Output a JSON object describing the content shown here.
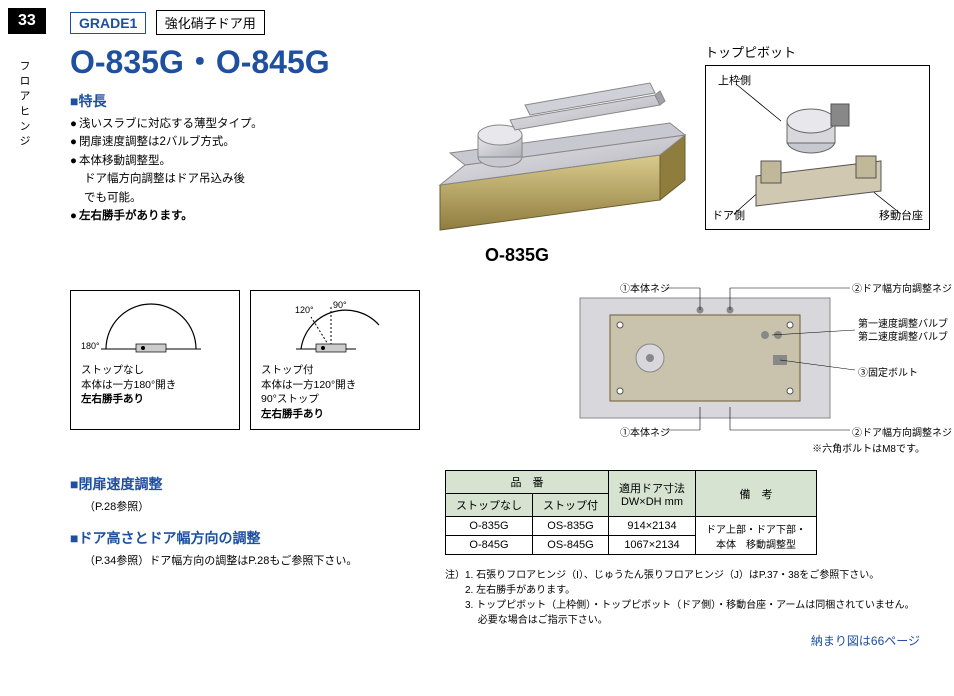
{
  "page_number": "33",
  "side_label": "フロアヒンジ",
  "grade": "GRADE1",
  "usage": "強化硝子ドア用",
  "product_code": "O-835G・O-845G",
  "features_heading": "■特長",
  "features": [
    {
      "text": "浅いスラブに対応する薄型タイプ。",
      "bullet": true
    },
    {
      "text": "閉扉速度調整は2バルブ方式。",
      "bullet": true
    },
    {
      "text": "本体移動調整型。",
      "bullet": true
    },
    {
      "text": "ドア幅方向調整はドア吊込み後",
      "indent": true
    },
    {
      "text": "でも可能。",
      "indent": true
    },
    {
      "text": "左右勝手があります。",
      "bullet": true,
      "bold": true
    }
  ],
  "main_product_label": "O-835G",
  "pivot": {
    "title": "トップピボット",
    "annotations": {
      "top": "上枠側",
      "left": "ドア側",
      "right": "移動台座"
    }
  },
  "diagrams": [
    {
      "angle_main": "180°",
      "lines": [
        "ストップなし",
        "本体は一方180°開き"
      ],
      "bold_line": "左右勝手あり"
    },
    {
      "angle_top": "90°",
      "angle_main": "120°",
      "lines": [
        "ストップ付",
        "本体は一方120°開き",
        "90°ストップ"
      ],
      "bold_line": "左右勝手あり"
    }
  ],
  "component_annotations": {
    "top_left": "①本体ネジ",
    "top_right": "②ドア幅方向調整ネジ",
    "valve1": "第一速度調整バルブ",
    "valve2": "第二速度調整バルブ",
    "bolt": "③固定ボルト",
    "bottom_left": "①本体ネジ",
    "bottom_right": "②ドア幅方向調整ネジ",
    "note": "※六角ボルトはM8です。"
  },
  "adjustment_sections": [
    {
      "heading": "■閉扉速度調整",
      "ref": "（P.28参照）"
    },
    {
      "heading": "■ドア高さとドア幅方向の調整",
      "ref": "（P.34参照）ドア幅方向の調整はP.28もご参照下さい。"
    }
  ],
  "spec_table": {
    "headers": {
      "product_no": "品　番",
      "no_stop": "ストップなし",
      "with_stop": "ストップ付",
      "door_size": "適用ドア寸法\nDW×DH mm",
      "remarks": "備　考"
    },
    "rows": [
      {
        "no_stop": "O-835G",
        "with_stop": "OS-835G",
        "size": "914×2134"
      },
      {
        "no_stop": "O-845G",
        "with_stop": "OS-845G",
        "size": "1067×2134"
      }
    ],
    "remarks_text": "ドア上部・ドア下部・\n本体　移動調整型"
  },
  "table_notes": [
    "注）1. 石張りフロアヒンジ（I）、じゅうたん張りフロアヒンジ（J）はP.37・38をご参照下さい。",
    "　　2. 左右勝手があります。",
    "　　3. トップピボット（上枠側）・トップピボット（ドア側）・移動台座・アームは同梱されていません。",
    "　　　 必要な場合はご指示下さい。"
  ],
  "page_ref": "納まり図は66ページ",
  "colors": {
    "blue": "#1e4fa0",
    "table_header": "#d5e3d0",
    "metal_light": "#d8d8dc",
    "metal_dark": "#a8a8b0",
    "brass": "#c9b87a",
    "brass_dark": "#8f7d3e"
  }
}
